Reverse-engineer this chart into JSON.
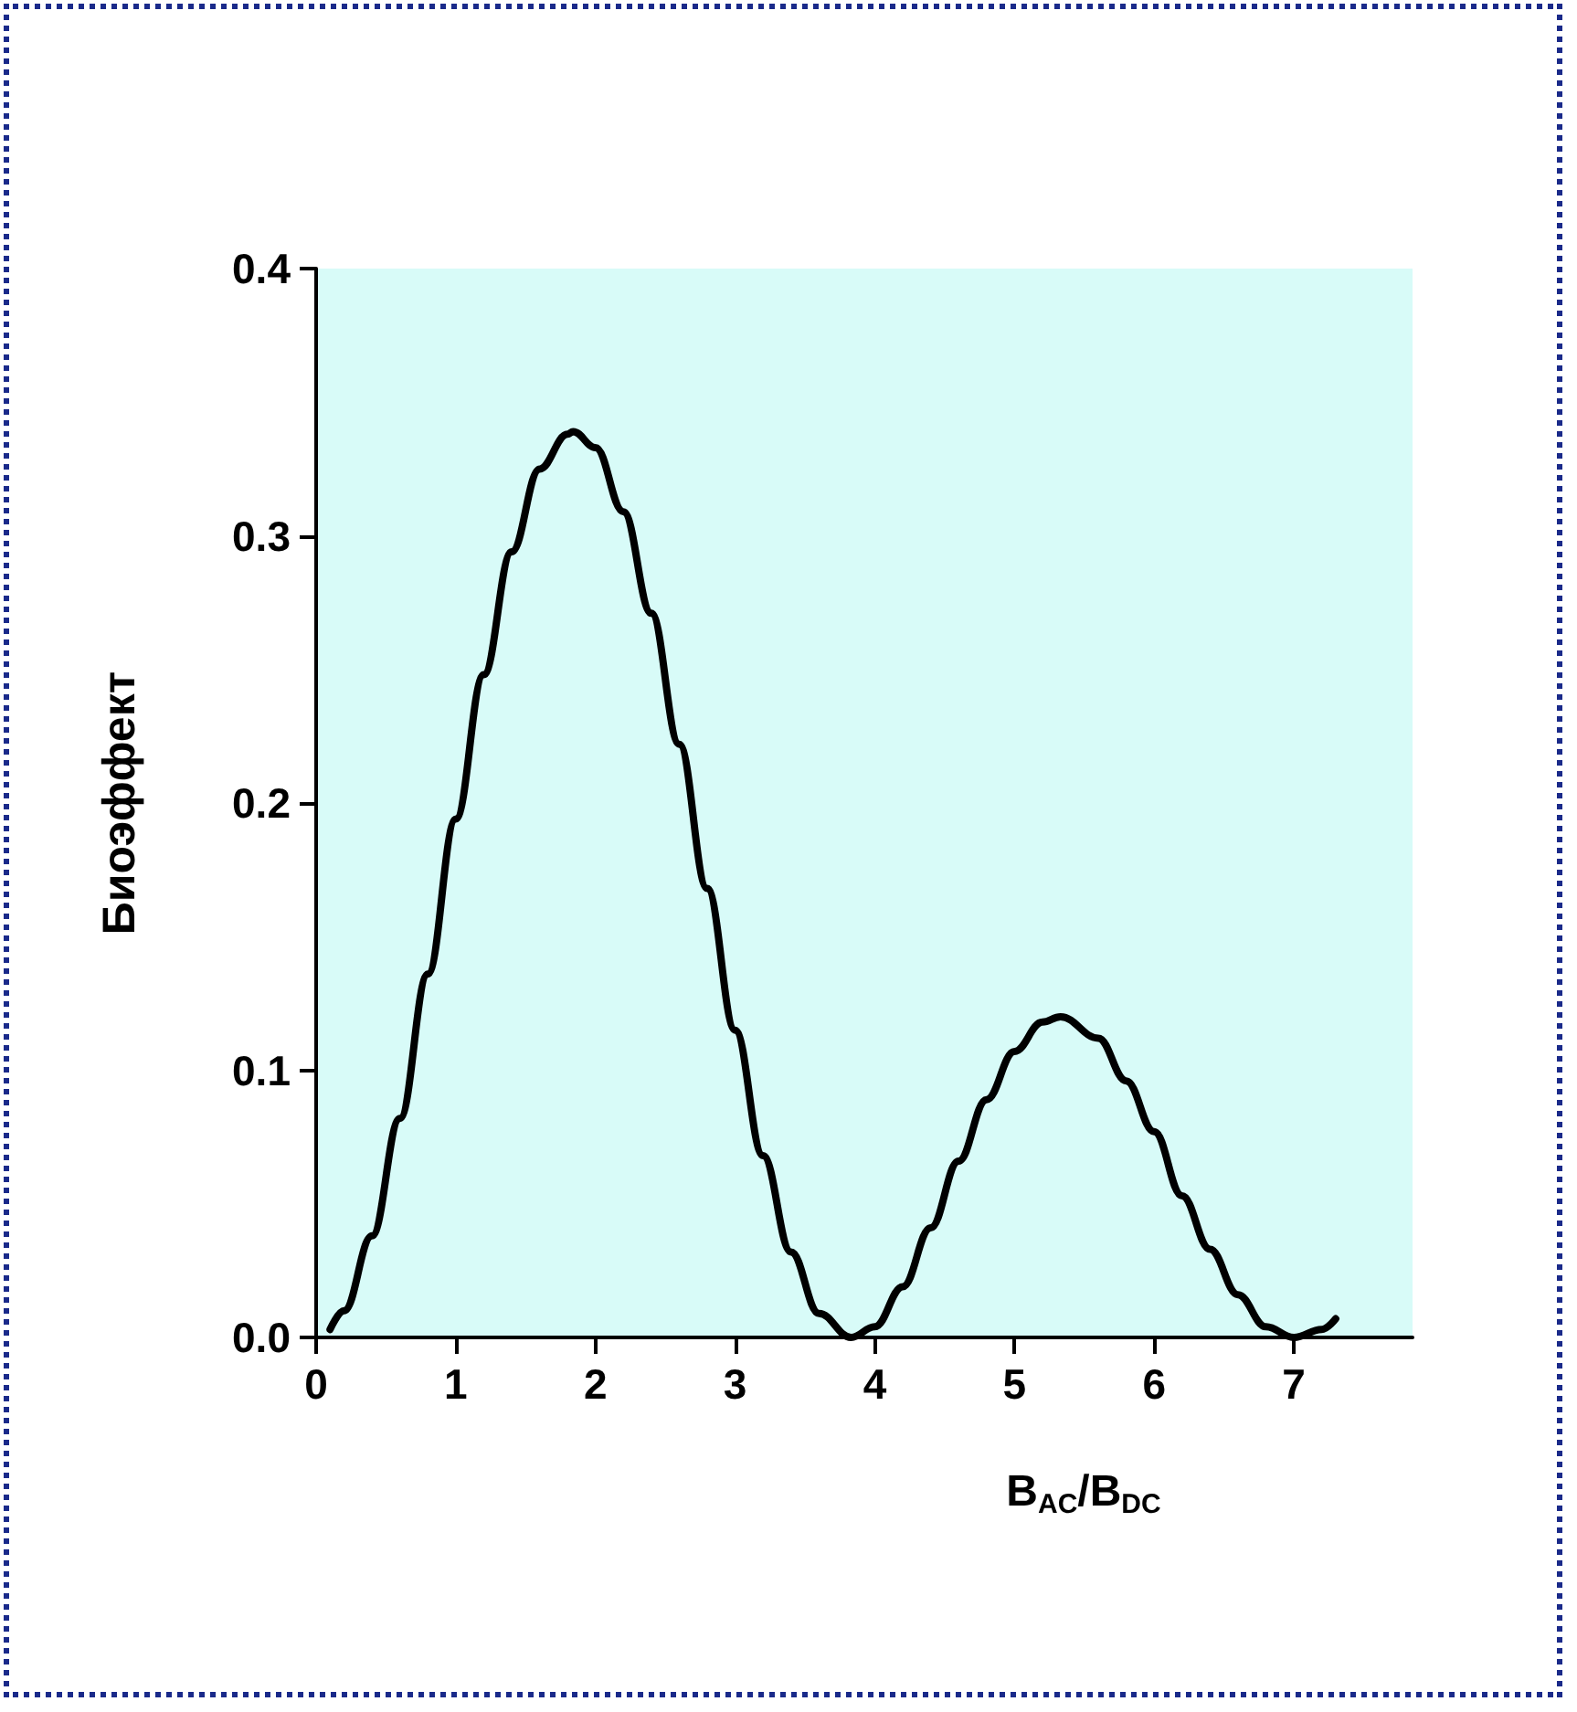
{
  "chart_data": {
    "type": "line",
    "xlabel": "B$_{AC}$/B$_{DC}$",
    "ylabel": "Биоэффект",
    "xlim": [
      0,
      7.85
    ],
    "xticks": [
      0,
      1,
      2,
      3,
      4,
      5,
      6,
      7
    ],
    "ylim": [
      0,
      0.4
    ],
    "yticks": [
      {
        "value": 0,
        "label": "0.0"
      },
      {
        "value": 0.1,
        "label": "0.1"
      },
      {
        "value": 0.2,
        "label": "0.2"
      },
      {
        "value": 0.3,
        "label": "0.3"
      },
      {
        "value": 0.4,
        "label": "0.4"
      }
    ],
    "marker": "none",
    "line_style": "solid",
    "series": [
      {
        "color": "#000000",
        "x": [
          0.1,
          0.2,
          0.4,
          0.6,
          0.8,
          1.0,
          1.2,
          1.4,
          1.6,
          1.8,
          1.84,
          2.0,
          2.2,
          2.4,
          2.6,
          2.8,
          3.0,
          3.2,
          3.4,
          3.6,
          3.83,
          4.0,
          4.2,
          4.4,
          4.6,
          4.8,
          5.0,
          5.2,
          5.33,
          5.6,
          5.8,
          6.0,
          6.2,
          6.4,
          6.6,
          6.8,
          7.0,
          7.2,
          7.3
        ],
        "values": [
          0.003,
          0.01,
          0.038,
          0.082,
          0.136,
          0.194,
          0.248,
          0.294,
          0.325,
          0.338,
          0.339,
          0.333,
          0.309,
          0.271,
          0.222,
          0.168,
          0.115,
          0.068,
          0.032,
          0.009,
          0,
          0.004,
          0.019,
          0.041,
          0.066,
          0.089,
          0.107,
          0.118,
          0.12,
          0.112,
          0.096,
          0.077,
          0.053,
          0.033,
          0.016,
          0.004,
          0,
          0.003,
          0.007
        ]
      }
    ]
  }
}
